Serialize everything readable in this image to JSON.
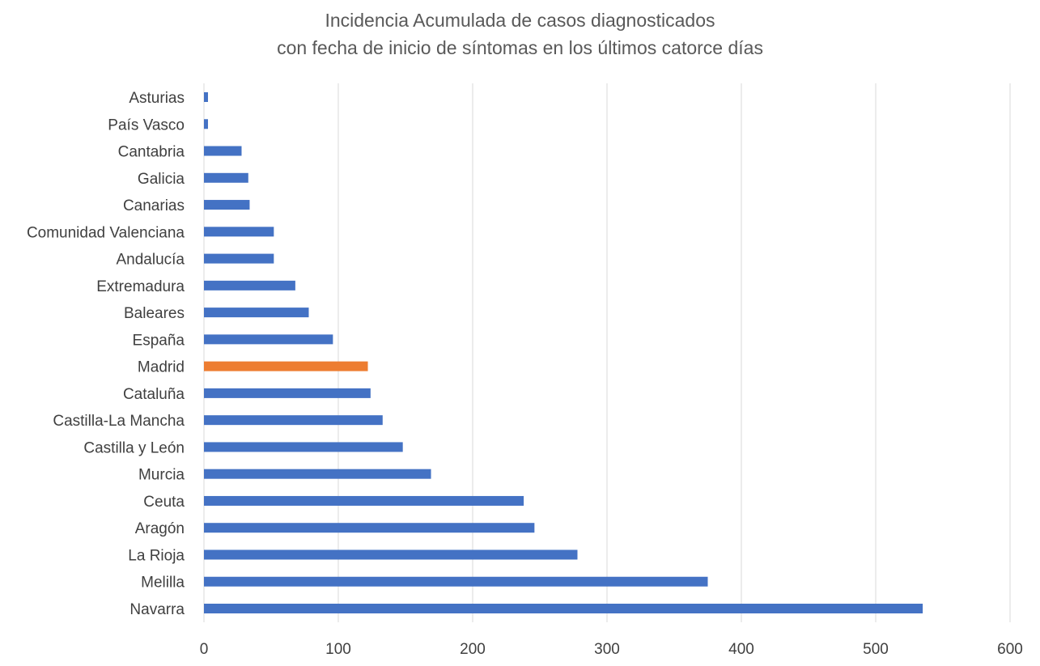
{
  "chart_data": {
    "type": "bar",
    "orientation": "horizontal",
    "title": "Incidencia Acumulada de casos diagnosticados",
    "subtitle": "con fecha de inicio de síntomas en los últimos catorce días",
    "categories": [
      "Asturias",
      "País Vasco",
      "Cantabria",
      "Galicia",
      "Canarias",
      "Comunidad Valenciana",
      "Andalucía ",
      "Extremadura",
      "Baleares",
      "España",
      "Madrid",
      "Cataluña",
      "Castilla-La Mancha",
      "Castilla y León",
      "Murcia",
      "Ceuta",
      "Aragón",
      "La Rioja",
      "Melilla",
      "Navarra"
    ],
    "values": [
      3,
      3,
      28,
      33,
      34,
      52,
      52,
      68,
      78,
      96,
      122,
      124,
      133,
      148,
      169,
      238,
      246,
      278,
      375,
      535
    ],
    "highlight_category": "Madrid",
    "colors": {
      "default": "#4472C4",
      "highlight": "#ED7D31",
      "grid": "#D9D9D9",
      "text": "#404040",
      "title": "#595959"
    },
    "xlim": [
      0,
      600
    ],
    "xticks": [
      0,
      100,
      200,
      300,
      400,
      500,
      600
    ],
    "grid": true,
    "legend": "none",
    "xlabel": "",
    "ylabel": ""
  }
}
